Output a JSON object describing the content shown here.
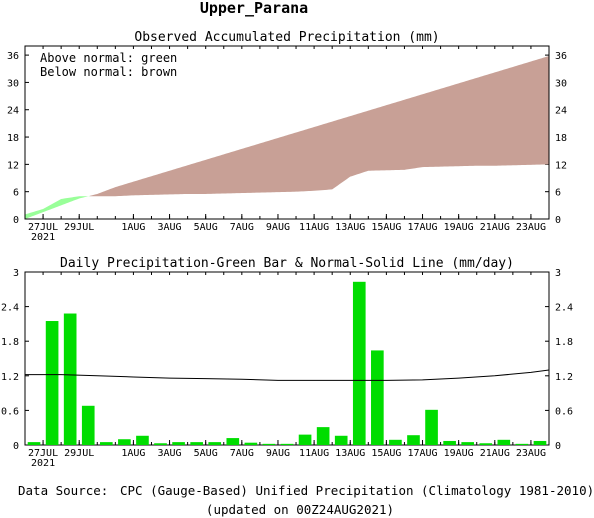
{
  "page_title": "Upper_Parana",
  "footer": {
    "source_label": "Data Source:",
    "source_text": "CPC (Gauge-Based) Unified Precipitation (Climatology 1981-2010)",
    "updated": "(updated on 00Z24AUG2021)"
  },
  "colors": {
    "above_normal": "#99ff99",
    "below_normal": "#c8a096",
    "bar": "#00dd00",
    "source_label": "#e01010"
  },
  "chart_data": [
    {
      "type": "area",
      "title": "Observed Accumulated Precipitation (mm)",
      "legend_lines": [
        "Above normal: green",
        "Below normal: brown"
      ],
      "x_tick_labels": [
        "27JUL",
        "29JUL",
        "1AUG",
        "3AUG",
        "5AUG",
        "7AUG",
        "9AUG",
        "11AUG",
        "13AUG",
        "15AUG",
        "17AUG",
        "19AUG",
        "21AUG",
        "23AUG"
      ],
      "x_tick_days": [
        1,
        3,
        6,
        8,
        10,
        12,
        14,
        16,
        18,
        20,
        22,
        24,
        26,
        28
      ],
      "year_label": "2021",
      "ylim": [
        0,
        38
      ],
      "yticks": [
        0,
        6,
        12,
        18,
        24,
        30,
        36
      ],
      "xlim": [
        0,
        29
      ],
      "series": [
        {
          "name": "observed",
          "x": [
            0,
            1,
            2,
            3,
            4,
            5,
            6,
            7,
            8,
            9,
            10,
            11,
            12,
            13,
            14,
            15,
            16,
            17,
            18,
            19,
            20,
            21,
            22,
            23,
            24,
            25,
            26,
            27,
            28,
            29
          ],
          "values": [
            1.0,
            2.2,
            4.4,
            5.0,
            5.0,
            5.0,
            5.2,
            5.3,
            5.4,
            5.5,
            5.5,
            5.6,
            5.7,
            5.8,
            5.9,
            6.0,
            6.2,
            6.5,
            9.3,
            10.6,
            10.7,
            10.8,
            11.4,
            11.5,
            11.6,
            11.7,
            11.7,
            11.8,
            11.9,
            12.0
          ]
        },
        {
          "name": "normal",
          "x": [
            0,
            1,
            2,
            3,
            4,
            5,
            6,
            7,
            8,
            9,
            10,
            11,
            12,
            13,
            14,
            15,
            16,
            17,
            18,
            19,
            20,
            21,
            22,
            23,
            24,
            25,
            26,
            27,
            28,
            29
          ],
          "values": [
            0.0,
            1.5,
            3.0,
            4.5,
            5.5,
            7.0,
            8.2,
            9.4,
            10.6,
            11.8,
            13.0,
            14.2,
            15.4,
            16.6,
            17.8,
            19.0,
            20.2,
            21.4,
            22.6,
            23.8,
            25.0,
            26.2,
            27.4,
            28.6,
            29.8,
            31.0,
            32.2,
            33.4,
            34.6,
            35.8
          ]
        }
      ]
    },
    {
      "type": "bar",
      "title": "Daily Precipitation-Green Bar & Normal-Solid Line (mm/day)",
      "x_tick_labels": [
        "27JUL",
        "29JUL",
        "1AUG",
        "3AUG",
        "5AUG",
        "7AUG",
        "9AUG",
        "11AUG",
        "13AUG",
        "15AUG",
        "17AUG",
        "19AUG",
        "21AUG",
        "23AUG"
      ],
      "x_tick_days": [
        1,
        3,
        6,
        8,
        10,
        12,
        14,
        16,
        18,
        20,
        22,
        24,
        26,
        28
      ],
      "year_label": "2021",
      "ylim": [
        0,
        3.0
      ],
      "yticks": [
        0,
        0.6,
        1.2,
        1.8,
        2.4,
        3
      ],
      "ytick_labels": [
        "0",
        "0.6",
        "1.2",
        "1.8",
        "2.4",
        "3"
      ],
      "xlim": [
        0,
        29
      ],
      "series": [
        {
          "name": "Green Bar",
          "x": [
            0,
            1,
            2,
            3,
            4,
            5,
            6,
            7,
            8,
            9,
            10,
            11,
            12,
            13,
            14,
            15,
            16,
            17,
            18,
            19,
            20,
            21,
            22,
            23,
            24,
            25,
            26,
            27,
            28
          ],
          "values": [
            0.05,
            2.15,
            2.28,
            0.68,
            0.05,
            0.1,
            0.16,
            0.03,
            0.05,
            0.05,
            0.05,
            0.12,
            0.04,
            0.02,
            0.02,
            0.18,
            0.31,
            0.16,
            2.83,
            1.64,
            0.09,
            0.17,
            0.61,
            0.07,
            0.05,
            0.03,
            0.09,
            0.02,
            0.07
          ]
        },
        {
          "name": "Normal-Solid Line",
          "x": [
            0,
            2,
            4,
            6,
            8,
            10,
            12,
            14,
            16,
            18,
            20,
            22,
            24,
            26,
            28,
            29
          ],
          "values": [
            1.22,
            1.22,
            1.2,
            1.18,
            1.16,
            1.15,
            1.14,
            1.12,
            1.12,
            1.12,
            1.12,
            1.13,
            1.16,
            1.2,
            1.26,
            1.3
          ]
        }
      ]
    }
  ]
}
